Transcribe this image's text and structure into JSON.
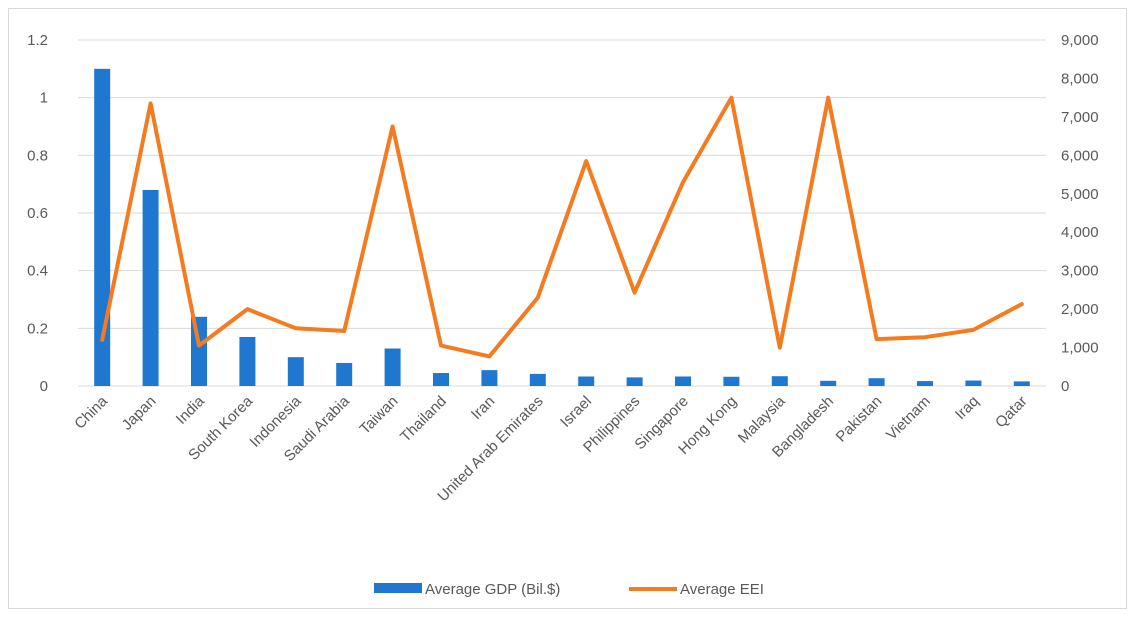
{
  "chart_data": {
    "type": "bar",
    "combo": "bar + line, dual y-axis",
    "title": "",
    "xlabel": "",
    "ylabel": "",
    "categories": [
      "China",
      "Japan",
      "India",
      "South Korea",
      "Indonesia",
      "Saudi Arabia",
      "Taiwan",
      "Thailand",
      "Iran",
      "United Arab Emirates",
      "Israel",
      "Philippines",
      "Singapore",
      "Hong Kong",
      "Malaysia",
      "Bangladesh",
      "Pakistan",
      "Vietnam",
      "Iraq",
      "Qatar"
    ],
    "series": [
      {
        "name": "Average GDP (Bil.$)",
        "type": "bar",
        "axis": "left",
        "color": "#1f77d0",
        "values": [
          1.1,
          0.68,
          0.24,
          0.17,
          0.1,
          0.08,
          0.13,
          0.045,
          0.055,
          0.042,
          0.033,
          0.03,
          0.033,
          0.032,
          0.034,
          0.018,
          0.027,
          0.017,
          0.019,
          0.016
        ]
      },
      {
        "name": "Average EEI",
        "type": "line",
        "axis": "right",
        "color": "#f47b20",
        "values": [
          1200,
          7350,
          1050,
          2000,
          1500,
          1430,
          6750,
          1050,
          770,
          2300,
          5850,
          2430,
          5300,
          7500,
          1000,
          7500,
          1220,
          1270,
          1460,
          2130
        ]
      }
    ],
    "y_left": {
      "range": [
        0,
        1.2
      ],
      "ticks": [
        "0",
        "0.2",
        "0.4",
        "0.6",
        "0.8",
        "1",
        "1.2"
      ]
    },
    "y_right": {
      "range": [
        0,
        9000
      ],
      "ticks": [
        "0",
        "1,000",
        "2,000",
        "3,000",
        "4,000",
        "5,000",
        "6,000",
        "7,000",
        "8,000",
        "9,000"
      ]
    },
    "grid": true,
    "legend_position": "bottom"
  }
}
